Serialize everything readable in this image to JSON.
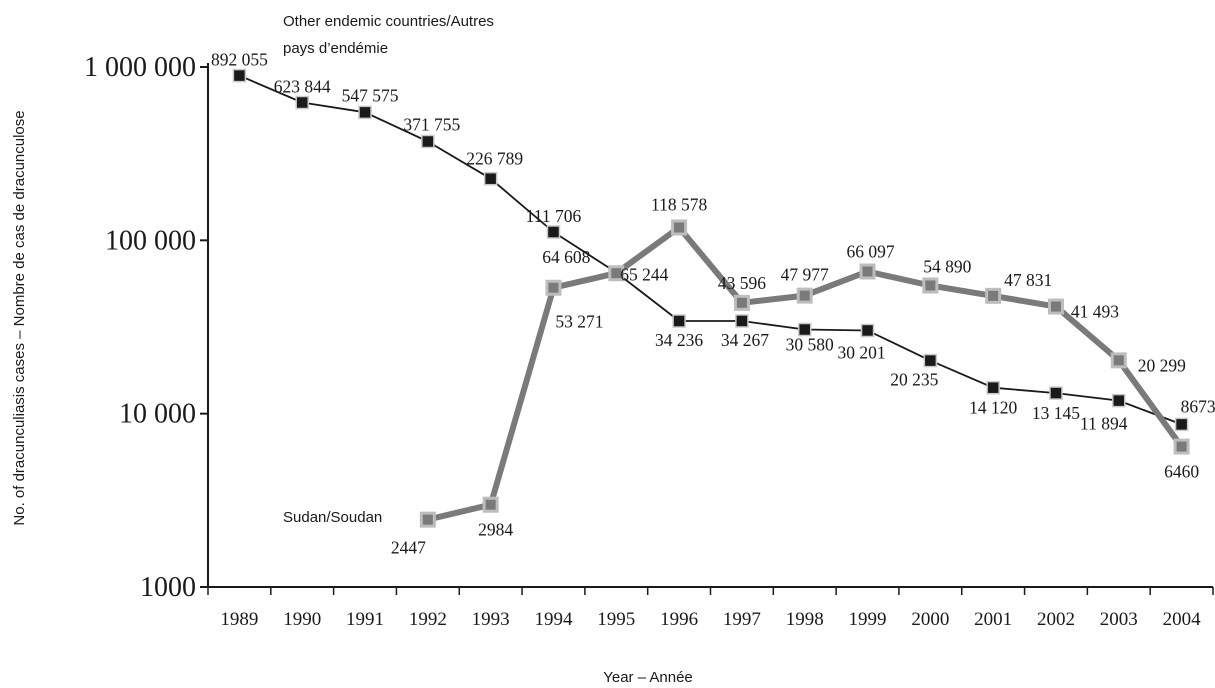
{
  "chart_data": {
    "type": "line",
    "title": "",
    "xlabel": "Year – Année",
    "ylabel": "No. of dracunculiasis cases – Nombre de cas de dracunculose",
    "y_scale": "log",
    "ylim": [
      1000,
      1000000
    ],
    "y_ticks": [
      {
        "value": 1000,
        "label": "1000"
      },
      {
        "value": 10000,
        "label": "10 000"
      },
      {
        "value": 100000,
        "label": "100 000"
      },
      {
        "value": 1000000,
        "label": "1 000 000"
      }
    ],
    "categories": [
      "1989",
      "1990",
      "1991",
      "1992",
      "1993",
      "1994",
      "1995",
      "1996",
      "1997",
      "1998",
      "1999",
      "2000",
      "2001",
      "2002",
      "2003",
      "2004"
    ],
    "grid": false,
    "legend": "inline labels",
    "series": [
      {
        "name": "Other endemic countries/Autres pays d’endémie",
        "name_lines": [
          "Other endemic countries/Autres",
          "pays d’endémie"
        ],
        "color": "#1a1a1a",
        "marker_fill": "#1a1a1a",
        "marker_stroke": "#c8c8c8",
        "values": [
          892055,
          623844,
          547575,
          371755,
          226789,
          111706,
          65244,
          34236,
          34267,
          30580,
          30201,
          20235,
          14120,
          13145,
          11894,
          8673
        ],
        "labels": [
          "892 055",
          "623 844",
          "547 575",
          "371 755",
          "226 789",
          "111 706",
          "65 244",
          "34 236",
          "34 267",
          "30 580",
          "30 201",
          "20 235",
          "14 120",
          "13 145",
          "11 894",
          "8673"
        ]
      },
      {
        "name": "Sudan/Soudan",
        "name_lines": [
          "Sudan/Soudan"
        ],
        "color": "#7a7a7a",
        "marker_fill": "#7a7a7a",
        "marker_stroke": "#bdbdbd",
        "values": [
          null,
          null,
          null,
          2447,
          2984,
          53271,
          64608,
          118578,
          43596,
          47977,
          66097,
          54890,
          47831,
          41493,
          20299,
          6460
        ],
        "labels": [
          null,
          null,
          null,
          "2447",
          "2984",
          "53 271",
          "64 608",
          "118 578",
          "43 596",
          "47 977",
          "66 097",
          "54 890",
          "47 831",
          "41 493",
          "20 299",
          "6460"
        ]
      }
    ]
  }
}
